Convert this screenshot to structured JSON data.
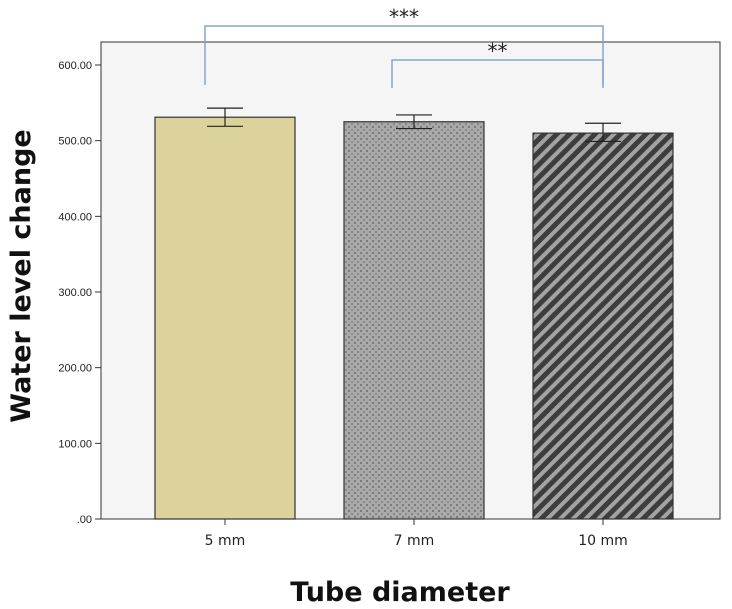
{
  "chart_data": {
    "type": "bar",
    "categories": [
      "5 mm",
      "7 mm",
      "10 mm"
    ],
    "values": [
      531,
      525,
      510
    ],
    "error_bars": [
      {
        "low": 519,
        "high": 543
      },
      {
        "low": 516,
        "high": 534
      },
      {
        "low": 499,
        "high": 523
      }
    ],
    "xlabel": "Tube diameter",
    "ylabel": "Water level change",
    "ylim": [
      0,
      600
    ],
    "yticks": [
      0,
      100,
      200,
      300,
      400,
      500,
      600
    ],
    "ytick_labels": [
      ".00",
      "100.00",
      "200.00",
      "300.00",
      "400.00",
      "500.00",
      "600.00"
    ],
    "bar_styles": [
      {
        "fill": "#dbd39b",
        "pattern": "solid"
      },
      {
        "fill": "#a6a6a6",
        "pattern": "dotted"
      },
      {
        "fill": "#6c6c6c",
        "pattern": "diagonal-stripes"
      }
    ],
    "plot_background": "#f5f5f5",
    "bracket_color": "#8aa3cd",
    "significance": [
      {
        "from": 0,
        "to": 2,
        "label": "***"
      },
      {
        "from": 1,
        "to": 2,
        "label": "**"
      }
    ],
    "grid": false
  }
}
